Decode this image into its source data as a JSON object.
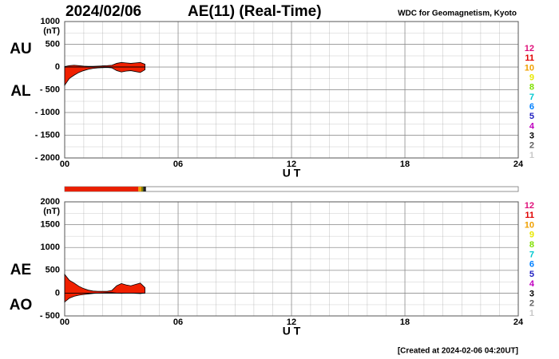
{
  "header": {
    "date": "2024/02/06",
    "title": "AE(11) (Real-Time)",
    "credit": "WDC for Geomagnetism, Kyoto",
    "footer": "[Created at 2024-02-06 04:20UT]",
    "station_key": [
      {
        "label": "12",
        "color": "#e0107a"
      },
      {
        "label": "11",
        "color": "#e00000"
      },
      {
        "label": "10",
        "color": "#f0a000"
      },
      {
        "label": "9",
        "color": "#e8e800"
      },
      {
        "label": "8",
        "color": "#80e000"
      },
      {
        "label": "7",
        "color": "#00c8d0"
      },
      {
        "label": "6",
        "color": "#0080ff"
      },
      {
        "label": "5",
        "color": "#2020c0"
      },
      {
        "label": "4",
        "color": "#c000c0"
      },
      {
        "label": "3",
        "color": "#000000"
      },
      {
        "label": "2",
        "color": "#606060"
      },
      {
        "label": "1",
        "color": "#c8c8c8"
      }
    ],
    "coverage": [
      {
        "start": 0,
        "end": 3.9,
        "color": "#e82000"
      },
      {
        "start": 3.9,
        "end": 4.05,
        "color": "#f0a000"
      },
      {
        "start": 4.05,
        "end": 4.15,
        "color": "#808000"
      },
      {
        "start": 4.15,
        "end": 4.3,
        "color": "#202020"
      }
    ]
  },
  "chart_data": [
    {
      "type": "area",
      "unit_label": "(nT)",
      "xlabel": "U T",
      "xlim": [
        0,
        24
      ],
      "xticks": [
        {
          "value": 0,
          "label": "00"
        },
        {
          "value": 6,
          "label": "06"
        },
        12,
        18,
        24
      ],
      "ylim": [
        -2000,
        1000
      ],
      "yticks": [
        1000,
        500,
        0,
        {
          "value": -500,
          "label": "- 500"
        },
        {
          "value": -1000,
          "label": "- 1000"
        },
        {
          "value": -1500,
          "label": "- 1500"
        },
        {
          "value": -2000,
          "label": "- 2000"
        }
      ],
      "grid": true,
      "x": [
        0,
        0.25,
        0.5,
        0.75,
        1,
        1.25,
        1.5,
        1.75,
        2,
        2.25,
        2.5,
        2.75,
        3,
        3.25,
        3.5,
        3.75,
        4,
        4.25
      ],
      "series": [
        {
          "name": "AU",
          "color": "#f02000",
          "values": [
            10,
            30,
            40,
            30,
            20,
            15,
            15,
            20,
            25,
            30,
            40,
            80,
            100,
            90,
            80,
            90,
            100,
            60
          ]
        },
        {
          "name": "AL",
          "color": "#f02000",
          "values": [
            -400,
            -250,
            -180,
            -120,
            -80,
            -50,
            -30,
            -20,
            -15,
            -10,
            -20,
            -80,
            -110,
            -90,
            -80,
            -100,
            -120,
            -60
          ]
        }
      ]
    },
    {
      "type": "area",
      "unit_label": "(nT)",
      "xlabel": "U T",
      "xlim": [
        0,
        24
      ],
      "xticks": [
        {
          "value": 0,
          "label": "00"
        },
        {
          "value": 6,
          "label": "06"
        },
        12,
        18,
        24
      ],
      "ylim": [
        -500,
        2000
      ],
      "yticks": [
        2000,
        1500,
        1000,
        500,
        0,
        {
          "value": -500,
          "label": "- 500"
        }
      ],
      "grid": true,
      "x": [
        0,
        0.25,
        0.5,
        0.75,
        1,
        1.25,
        1.5,
        1.75,
        2,
        2.25,
        2.5,
        2.75,
        3,
        3.25,
        3.5,
        3.75,
        4,
        4.25
      ],
      "series": [
        {
          "name": "AE",
          "color": "#f02000",
          "values": [
            410,
            280,
            220,
            150,
            100,
            65,
            45,
            40,
            40,
            40,
            60,
            160,
            210,
            180,
            160,
            190,
            220,
            120
          ]
        },
        {
          "name": "AO",
          "color": "#f02000",
          "values": [
            -195,
            -110,
            -70,
            -45,
            -30,
            -18,
            -8,
            0,
            5,
            10,
            10,
            0,
            -5,
            0,
            0,
            -5,
            -10,
            0
          ]
        }
      ]
    }
  ]
}
